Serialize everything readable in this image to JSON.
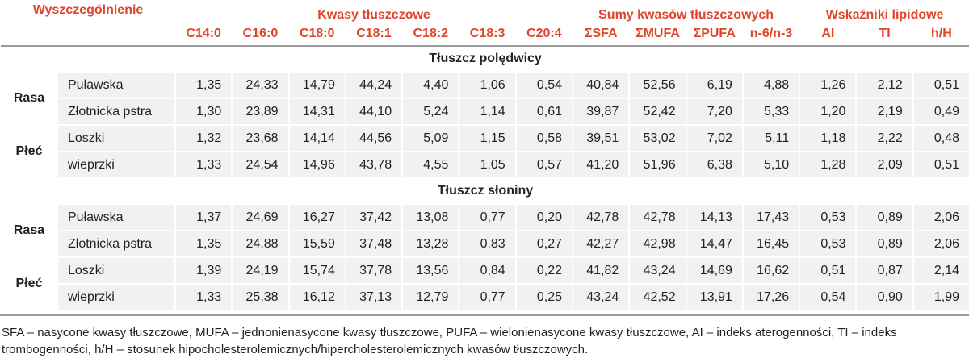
{
  "header": {
    "stub": "Wyszczególnienie",
    "groups": [
      {
        "label": "Kwasy tłuszczowe",
        "columns": [
          "C14:0",
          "C16:0",
          "C18:0",
          "C18:1",
          "C18:2",
          "C18:3",
          "C20:4"
        ]
      },
      {
        "label": "Sumy kwasów tłuszczowych",
        "columns": [
          "ΣSFA",
          "ΣMUFA",
          "ΣPUFA",
          "n-6/n-3"
        ]
      },
      {
        "label": "Wskaźniki lipidowe",
        "columns": [
          "AI",
          "TI",
          "h/H"
        ]
      }
    ]
  },
  "sections": [
    {
      "title": "Tłuszcz polędwicy",
      "groups": [
        {
          "label": "Rasa",
          "rows": [
            {
              "label": "Puławska",
              "values": [
                "1,35",
                "24,33",
                "14,79",
                "44,24",
                "4,40",
                "1,06",
                "0,54",
                "40,84",
                "52,56",
                "6,19",
                "4,88",
                "1,26",
                "2,12",
                "0,51"
              ]
            },
            {
              "label": "Złotnicka pstra",
              "values": [
                "1,30",
                "23,89",
                "14,31",
                "44,10",
                "5,24",
                "1,14",
                "0,61",
                "39,87",
                "52,42",
                "7,20",
                "5,33",
                "1,20",
                "2,19",
                "0,49"
              ]
            }
          ]
        },
        {
          "label": "Płeć",
          "rows": [
            {
              "label": "Loszki",
              "values": [
                "1,32",
                "23,68",
                "14,14",
                "44,56",
                "5,09",
                "1,15",
                "0,58",
                "39,51",
                "53,02",
                "7,02",
                "5,11",
                "1,18",
                "2,22",
                "0,48"
              ]
            },
            {
              "label": "wieprzki",
              "values": [
                "1,33",
                "24,54",
                "14,96",
                "43,78",
                "4,55",
                "1,05",
                "0,57",
                "41,20",
                "51,96",
                "6,38",
                "5,10",
                "1,28",
                "2,09",
                "0,51"
              ]
            }
          ]
        }
      ]
    },
    {
      "title": "Tłuszcz słoniny",
      "groups": [
        {
          "label": "Rasa",
          "rows": [
            {
              "label": "Puławska",
              "values": [
                "1,37",
                "24,69",
                "16,27",
                "37,42",
                "13,08",
                "0,77",
                "0,20",
                "42,78",
                "42,78",
                "14,13",
                "17,43",
                "0,53",
                "0,89",
                "2,06"
              ]
            },
            {
              "label": "Złotnicka pstra",
              "values": [
                "1,35",
                "24,88",
                "15,59",
                "37,48",
                "13,28",
                "0,83",
                "0,27",
                "42,27",
                "42,98",
                "14,47",
                "16,45",
                "0,53",
                "0,89",
                "2,06"
              ]
            }
          ]
        },
        {
          "label": "Płeć",
          "rows": [
            {
              "label": "Loszki",
              "values": [
                "1,39",
                "24,19",
                "15,74",
                "37,78",
                "13,56",
                "0,84",
                "0,22",
                "41,82",
                "43,24",
                "14,69",
                "16,62",
                "0,51",
                "0,87",
                "2,14"
              ]
            },
            {
              "label": "wieprzki",
              "values": [
                "1,33",
                "25,38",
                "16,12",
                "37,13",
                "12,79",
                "0,77",
                "0,25",
                "43,24",
                "42,52",
                "13,91",
                "17,26",
                "0,54",
                "0,90",
                "1,99"
              ]
            }
          ]
        }
      ]
    }
  ],
  "footnote": "SFA – nasycone kwasy tłuszczowe, MUFA – jednonienasycone kwasy tłuszczowe, PUFA – wielonienasycone kwasy tłuszczowe, AI – indeks aterogenności, TI – indeks trombogenności, h/H – stosunek hipocholesterolemicznych/hipercholesterolemicznych kwasów tłuszczowych."
}
